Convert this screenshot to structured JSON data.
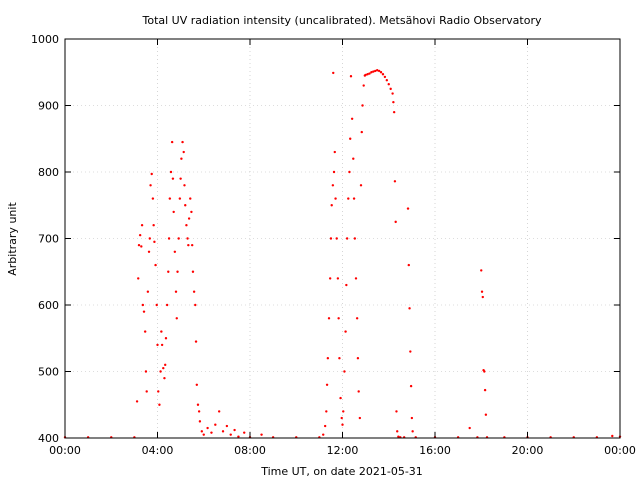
{
  "chart_data": {
    "type": "scatter",
    "title": "Total UV radiation intensity (uncalibrated). Metsähovi Radio Observatory",
    "xlabel": "Time UT, on date 2021-05-31",
    "ylabel": "Arbitrary unit",
    "xlim": [
      "00:00",
      "24:00"
    ],
    "ylim": [
      400,
      1000
    ],
    "x_ticks": [
      "00:00",
      "04:00",
      "08:00",
      "12:00",
      "16:00",
      "20:00",
      "00:00"
    ],
    "y_ticks": [
      400,
      500,
      600,
      700,
      800,
      900,
      1000
    ],
    "grid": true,
    "series": [
      {
        "color": "#ff0000",
        "points": [
          [
            "00:00",
            401
          ],
          [
            "01:00",
            401
          ],
          [
            "02:00",
            401
          ],
          [
            "03:00",
            401
          ],
          [
            "03:07",
            455
          ],
          [
            "03:10",
            640
          ],
          [
            "03:12",
            690
          ],
          [
            "03:15",
            705
          ],
          [
            "03:18",
            688
          ],
          [
            "03:20",
            720
          ],
          [
            "03:22",
            600
          ],
          [
            "03:25",
            590
          ],
          [
            "03:28",
            560
          ],
          [
            "03:30",
            500
          ],
          [
            "03:32",
            470
          ],
          [
            "03:35",
            620
          ],
          [
            "03:38",
            680
          ],
          [
            "03:40",
            700
          ],
          [
            "03:42",
            780
          ],
          [
            "03:45",
            797
          ],
          [
            "03:48",
            760
          ],
          [
            "03:50",
            720
          ],
          [
            "03:52",
            695
          ],
          [
            "03:55",
            660
          ],
          [
            "03:58",
            600
          ],
          [
            "04:00",
            540
          ],
          [
            "04:02",
            470
          ],
          [
            "04:05",
            450
          ],
          [
            "04:08",
            500
          ],
          [
            "04:10",
            560
          ],
          [
            "04:12",
            540
          ],
          [
            "04:15",
            505
          ],
          [
            "04:18",
            490
          ],
          [
            "04:20",
            510
          ],
          [
            "04:22",
            550
          ],
          [
            "04:25",
            600
          ],
          [
            "04:28",
            650
          ],
          [
            "04:30",
            700
          ],
          [
            "04:32",
            760
          ],
          [
            "04:35",
            800
          ],
          [
            "04:38",
            845
          ],
          [
            "04:40",
            790
          ],
          [
            "04:42",
            740
          ],
          [
            "04:45",
            680
          ],
          [
            "04:48",
            620
          ],
          [
            "04:50",
            580
          ],
          [
            "04:52",
            650
          ],
          [
            "04:55",
            700
          ],
          [
            "04:58",
            760
          ],
          [
            "05:00",
            790
          ],
          [
            "05:02",
            820
          ],
          [
            "05:05",
            845
          ],
          [
            "05:08",
            830
          ],
          [
            "05:10",
            780
          ],
          [
            "05:12",
            750
          ],
          [
            "05:15",
            720
          ],
          [
            "05:18",
            700
          ],
          [
            "05:20",
            690
          ],
          [
            "05:22",
            730
          ],
          [
            "05:25",
            760
          ],
          [
            "05:28",
            740
          ],
          [
            "05:30",
            690
          ],
          [
            "05:32",
            650
          ],
          [
            "05:35",
            620
          ],
          [
            "05:38",
            600
          ],
          [
            "05:40",
            545
          ],
          [
            "05:42",
            480
          ],
          [
            "05:45",
            450
          ],
          [
            "05:48",
            440
          ],
          [
            "05:50",
            425
          ],
          [
            "05:55",
            410
          ],
          [
            "06:00",
            405
          ],
          [
            "06:10",
            415
          ],
          [
            "06:20",
            408
          ],
          [
            "06:30",
            420
          ],
          [
            "06:40",
            440
          ],
          [
            "06:50",
            410
          ],
          [
            "07:00",
            418
          ],
          [
            "07:10",
            405
          ],
          [
            "07:20",
            412
          ],
          [
            "07:30",
            402
          ],
          [
            "07:45",
            408
          ],
          [
            "08:00",
            401
          ],
          [
            "08:30",
            405
          ],
          [
            "09:00",
            401
          ],
          [
            "10:00",
            401
          ],
          [
            "11:00",
            401
          ],
          [
            "11:10",
            405
          ],
          [
            "11:15",
            418
          ],
          [
            "11:18",
            440
          ],
          [
            "11:20",
            480
          ],
          [
            "11:22",
            520
          ],
          [
            "11:25",
            580
          ],
          [
            "11:28",
            640
          ],
          [
            "11:30",
            700
          ],
          [
            "11:32",
            750
          ],
          [
            "11:35",
            780
          ],
          [
            "11:36",
            949
          ],
          [
            "11:38",
            800
          ],
          [
            "11:40",
            830
          ],
          [
            "11:42",
            760
          ],
          [
            "11:45",
            700
          ],
          [
            "11:48",
            640
          ],
          [
            "11:50",
            580
          ],
          [
            "11:52",
            520
          ],
          [
            "11:55",
            460
          ],
          [
            "11:58",
            430
          ],
          [
            "12:00",
            420
          ],
          [
            "12:02",
            440
          ],
          [
            "12:05",
            500
          ],
          [
            "12:08",
            560
          ],
          [
            "12:10",
            630
          ],
          [
            "12:12",
            700
          ],
          [
            "12:15",
            760
          ],
          [
            "12:18",
            800
          ],
          [
            "12:20",
            850
          ],
          [
            "12:22",
            944
          ],
          [
            "12:25",
            880
          ],
          [
            "12:28",
            820
          ],
          [
            "12:30",
            760
          ],
          [
            "12:32",
            700
          ],
          [
            "12:35",
            640
          ],
          [
            "12:38",
            580
          ],
          [
            "12:40",
            520
          ],
          [
            "12:42",
            470
          ],
          [
            "12:45",
            430
          ],
          [
            "12:48",
            780
          ],
          [
            "12:50",
            860
          ],
          [
            "12:52",
            900
          ],
          [
            "12:55",
            930
          ],
          [
            "12:58",
            945
          ],
          [
            "13:00",
            946
          ],
          [
            "13:05",
            947
          ],
          [
            "13:10",
            948
          ],
          [
            "13:15",
            950
          ],
          [
            "13:20",
            951
          ],
          [
            "13:25",
            952
          ],
          [
            "13:30",
            953
          ],
          [
            "13:35",
            952
          ],
          [
            "13:40",
            950
          ],
          [
            "13:45",
            947
          ],
          [
            "13:50",
            943
          ],
          [
            "13:55",
            938
          ],
          [
            "14:00",
            932
          ],
          [
            "14:05",
            925
          ],
          [
            "14:10",
            918
          ],
          [
            "14:12",
            905
          ],
          [
            "14:14",
            890
          ],
          [
            "14:16",
            786
          ],
          [
            "14:18",
            725
          ],
          [
            "14:20",
            440
          ],
          [
            "14:22",
            410
          ],
          [
            "14:25",
            402
          ],
          [
            "14:30",
            401
          ],
          [
            "14:40",
            401
          ],
          [
            "14:50",
            745
          ],
          [
            "14:52",
            660
          ],
          [
            "14:54",
            595
          ],
          [
            "14:56",
            530
          ],
          [
            "14:58",
            478
          ],
          [
            "15:00",
            430
          ],
          [
            "15:02",
            410
          ],
          [
            "15:10",
            401
          ],
          [
            "16:00",
            401
          ],
          [
            "17:00",
            401
          ],
          [
            "17:30",
            415
          ],
          [
            "17:50",
            401
          ],
          [
            "18:00",
            652
          ],
          [
            "18:02",
            620
          ],
          [
            "18:04",
            612
          ],
          [
            "18:06",
            502
          ],
          [
            "18:08",
            500
          ],
          [
            "18:10",
            472
          ],
          [
            "18:12",
            435
          ],
          [
            "18:15",
            401
          ],
          [
            "19:00",
            401
          ],
          [
            "20:00",
            401
          ],
          [
            "21:00",
            401
          ],
          [
            "22:00",
            401
          ],
          [
            "23:00",
            401
          ],
          [
            "23:40",
            403
          ],
          [
            "24:00",
            402
          ]
        ]
      }
    ]
  }
}
